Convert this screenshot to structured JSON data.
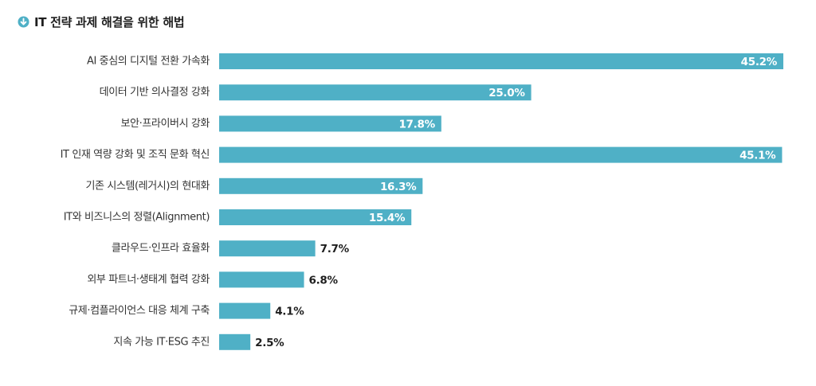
{
  "header": {
    "title": "IT 전략 과제 해결을 위한 해법",
    "icon": "circle-arrow-down-icon"
  },
  "colors": {
    "bar": "#4fb0c6",
    "icon": "#4fb0c6",
    "value_outside": "#1f1f1f",
    "value_inside": "#ffffff"
  },
  "chart_data": {
    "type": "bar",
    "orientation": "horizontal",
    "categories": [
      "AI 중심의 디지털 전환 가속화",
      "데이터 기반 의사결정 강화",
      "보안·프라이버시 강화",
      "IT 인재 역량 강화 및 조직 문화 혁신",
      "기존 시스템(레거시)의 현대화",
      "IT와 비즈니스의 정렬(Alignment)",
      "클라우드·인프라 효율화",
      "외부 파트너·생태계 협력 강화",
      "규제·컴플라이언스 대응 체계 구축",
      "지속 가능 IT·ESG 추진"
    ],
    "values": [
      45.2,
      25.0,
      17.8,
      45.1,
      16.3,
      15.4,
      7.7,
      6.8,
      4.1,
      2.5
    ],
    "value_labels": [
      "45.2%",
      "25.0%",
      "17.8%",
      "45.1%",
      "16.3%",
      "15.4%",
      "7.7%",
      "6.8%",
      "4.1%",
      "2.5%"
    ],
    "unit": "%",
    "xlim": [
      0,
      45.2
    ],
    "grid": false,
    "legend": "none"
  }
}
